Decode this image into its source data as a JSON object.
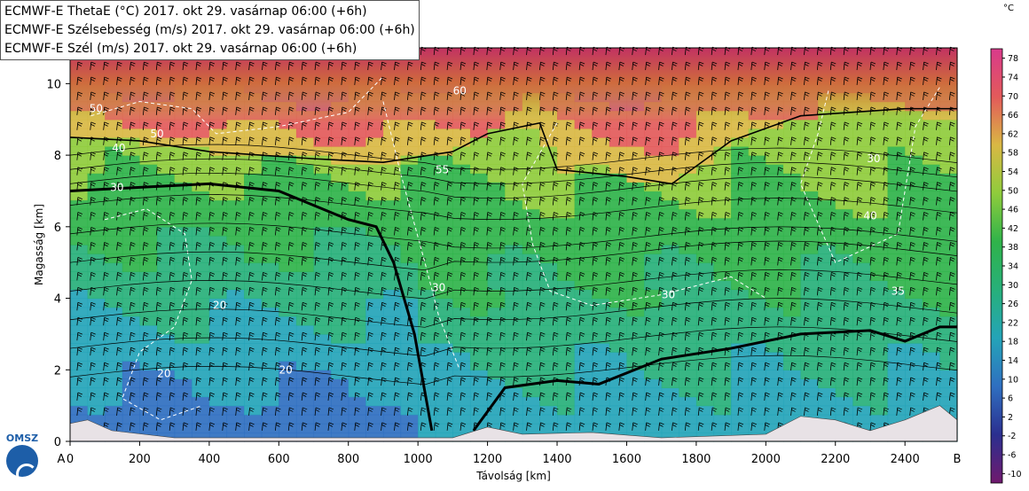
{
  "legend": [
    "ECMWF-E ThetaE (°C) 2017. okt 29. vasárnap 06:00 (+6h)",
    "ECMWF-E Szélsebesség (m/s) 2017. okt 29. vasárnap 06:00 (+6h)",
    "ECMWF-E Szél (m/s) 2017. okt 29. vasárnap 06:00 (+6h)"
  ],
  "logo_text": "OMSZ",
  "colorbar_unit": "°C",
  "colors": {
    "terrain": "#e8e2e6",
    "contour_solid": "#000000",
    "contour_dashed": "#ffffff",
    "cb_stops": [
      "#701a6e",
      "#2b2f8f",
      "#2f6fc0",
      "#24a4b8",
      "#27b07a",
      "#2fb34a",
      "#8fcc3c",
      "#d9b844",
      "#e35a5a",
      "#d93a8b"
    ]
  },
  "chart_data": {
    "type": "heatmap",
    "title": "",
    "xlabel": "Távolság [km]",
    "ylabel": "Magasság [km]",
    "xlim": [
      0,
      2550
    ],
    "ylim": [
      0,
      11
    ],
    "x_ticks": [
      "0",
      "200",
      "400",
      "600",
      "800",
      "1000",
      "1200",
      "1400",
      "1600",
      "1800",
      "2000",
      "2200",
      "2400"
    ],
    "x_tick_values": [
      0,
      200,
      400,
      600,
      800,
      1000,
      1200,
      1400,
      1600,
      1800,
      2000,
      2200,
      2400
    ],
    "y_ticks": [
      "0",
      "2",
      "4",
      "6",
      "8",
      "10"
    ],
    "y_tick_values": [
      0,
      2,
      4,
      6,
      8,
      10
    ],
    "x_end_labels": [
      "A",
      "B"
    ],
    "colorbar": {
      "label": "°C",
      "ticks": [
        "78",
        "74",
        "70",
        "66",
        "62",
        "58",
        "54",
        "50",
        "46",
        "42",
        "38",
        "34",
        "30",
        "26",
        "22",
        "18",
        "14",
        "10",
        "6",
        "2",
        "-2",
        "-6",
        "-10"
      ],
      "tick_values": [
        78,
        74,
        70,
        66,
        62,
        58,
        54,
        50,
        46,
        42,
        38,
        34,
        30,
        26,
        22,
        18,
        14,
        10,
        6,
        2,
        -2,
        -6,
        -10
      ],
      "range": [
        -12,
        80
      ]
    },
    "thetae_contour_labels": [
      {
        "label": "50",
        "x": 75,
        "y": 9.2
      },
      {
        "label": "50",
        "x": 250,
        "y": 8.5
      },
      {
        "label": "40",
        "x": 140,
        "y": 8.1
      },
      {
        "label": "30",
        "x": 135,
        "y": 7.0
      },
      {
        "label": "20",
        "x": 430,
        "y": 3.7
      },
      {
        "label": "20",
        "x": 270,
        "y": 1.8
      },
      {
        "label": "20",
        "x": 620,
        "y": 1.9
      },
      {
        "label": "30",
        "x": 1060,
        "y": 4.2
      },
      {
        "label": "30",
        "x": 1720,
        "y": 4.0
      },
      {
        "label": "35",
        "x": 2380,
        "y": 4.1
      },
      {
        "label": "40",
        "x": 2300,
        "y": 6.2
      },
      {
        "label": "30",
        "x": 2310,
        "y": 7.8
      },
      {
        "label": "60",
        "x": 1120,
        "y": 9.7
      },
      {
        "label": "55",
        "x": 1070,
        "y": 7.5
      }
    ],
    "tropopause_line": [
      [
        0,
        7.0
      ],
      [
        200,
        7.1
      ],
      [
        400,
        7.2
      ],
      [
        600,
        7.0
      ],
      [
        700,
        6.6
      ],
      [
        800,
        6.2
      ],
      [
        880,
        6.0
      ],
      [
        930,
        5.0
      ],
      [
        990,
        3.0
      ],
      [
        1040,
        0.3
      ]
    ],
    "frontal_line": [
      [
        1160,
        0.3
      ],
      [
        1250,
        1.5
      ],
      [
        1400,
        1.7
      ],
      [
        1520,
        1.6
      ],
      [
        1700,
        2.3
      ],
      [
        1900,
        2.6
      ],
      [
        2100,
        3.0
      ],
      [
        2300,
        3.1
      ],
      [
        2400,
        2.8
      ],
      [
        2500,
        3.2
      ],
      [
        2550,
        3.2
      ]
    ],
    "upper_line": [
      [
        0,
        8.5
      ],
      [
        200,
        8.4
      ],
      [
        400,
        8.1
      ],
      [
        700,
        7.9
      ],
      [
        900,
        7.8
      ],
      [
        1100,
        8.1
      ],
      [
        1200,
        8.6
      ],
      [
        1350,
        8.9
      ],
      [
        1400,
        7.6
      ],
      [
        1600,
        7.4
      ],
      [
        1730,
        7.2
      ],
      [
        1900,
        8.4
      ],
      [
        2100,
        9.1
      ],
      [
        2400,
        9.3
      ],
      [
        2550,
        9.3
      ]
    ],
    "terrain_profile": [
      [
        0,
        0.5
      ],
      [
        50,
        0.6
      ],
      [
        120,
        0.3
      ],
      [
        300,
        0.1
      ],
      [
        800,
        0.1
      ],
      [
        1100,
        0.1
      ],
      [
        1200,
        0.4
      ],
      [
        1300,
        0.2
      ],
      [
        1500,
        0.25
      ],
      [
        1700,
        0.1
      ],
      [
        2000,
        0.2
      ],
      [
        2100,
        0.7
      ],
      [
        2200,
        0.6
      ],
      [
        2300,
        0.3
      ],
      [
        2400,
        0.6
      ],
      [
        2500,
        1.0
      ],
      [
        2550,
        0.6
      ]
    ]
  }
}
